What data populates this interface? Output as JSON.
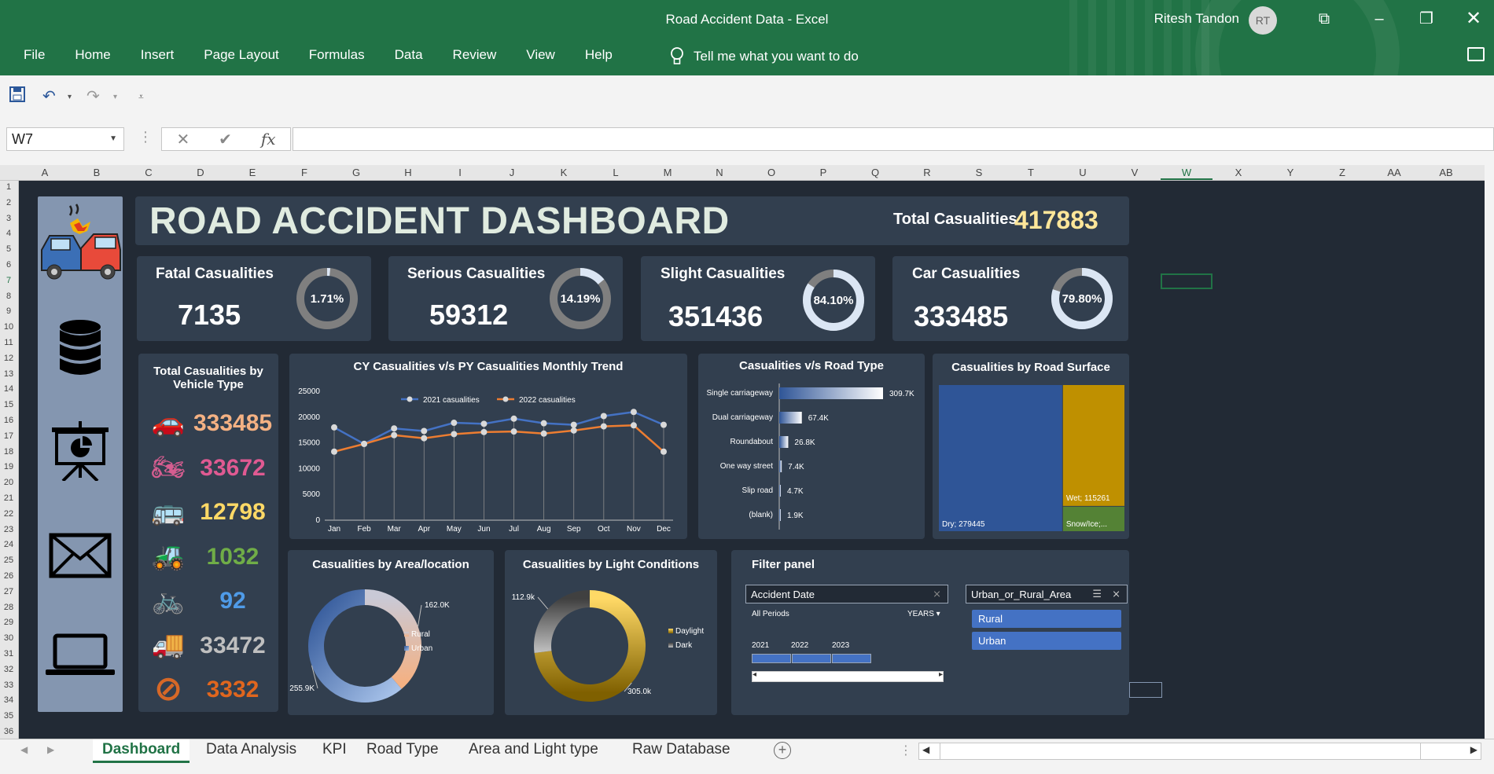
{
  "window": {
    "title": "Road Accident Data  -  Excel",
    "user": "Ritesh Tandon",
    "initials": "RT"
  },
  "ribbon": {
    "tabs": [
      "File",
      "Home",
      "Insert",
      "Page Layout",
      "Formulas",
      "Data",
      "Review",
      "View",
      "Help"
    ],
    "tell_me": "Tell me what you want to do"
  },
  "formula_bar": {
    "name_box": "W7",
    "fx": "fx",
    "value": ""
  },
  "columns": [
    "A",
    "B",
    "C",
    "D",
    "E",
    "F",
    "G",
    "H",
    "I",
    "J",
    "K",
    "L",
    "M",
    "N",
    "O",
    "P",
    "Q",
    "R",
    "S",
    "T",
    "U",
    "V",
    "W",
    "X",
    "Y",
    "Z",
    "AA",
    "AB"
  ],
  "rows": [
    "1",
    "2",
    "3",
    "4",
    "5",
    "6",
    "7",
    "8",
    "9",
    "10",
    "11",
    "12",
    "13",
    "14",
    "15",
    "16",
    "17",
    "18",
    "19",
    "20",
    "21",
    "22",
    "23",
    "24",
    "25",
    "26",
    "27",
    "28",
    "29",
    "30",
    "31",
    "32",
    "33",
    "34",
    "35",
    "36"
  ],
  "dashboard": {
    "title": "ROAD ACCIDENT DASHBOARD",
    "total_label": "Total Casualities",
    "total_value": "417883",
    "kpis": [
      {
        "label": "Fatal Casualities",
        "value": "7135",
        "pct": "1.71%",
        "fraction": 0.0171
      },
      {
        "label": "Serious Casualities",
        "value": "59312",
        "pct": "14.19%",
        "fraction": 0.1419
      },
      {
        "label": "Slight Casualities",
        "value": "351436",
        "pct": "84.10%",
        "fraction": 0.841
      },
      {
        "label": "Car Casualities",
        "value": "333485",
        "pct": "79.80%",
        "fraction": 0.798
      }
    ],
    "vehicle": {
      "title_line1": "Total Casualities by",
      "title_line2": "Vehicle Type",
      "items": [
        {
          "icon": "car-icon",
          "value": "333485",
          "color": "#f4b183"
        },
        {
          "icon": "motorcycle-icon",
          "value": "33672",
          "color": "#e05a92"
        },
        {
          "icon": "bus-icon",
          "value": "12798",
          "color": "#ffd966"
        },
        {
          "icon": "tractor-icon",
          "value": "1032",
          "color": "#70ad47"
        },
        {
          "icon": "bicycle-icon",
          "value": "92",
          "color": "#4f9be8"
        },
        {
          "icon": "truck-icon",
          "value": "33472",
          "color": "#bfbfbf"
        },
        {
          "icon": "no-entry-icon",
          "value": "3332",
          "color": "#e0661e"
        }
      ]
    },
    "filter": {
      "title": "Filter panel",
      "date_label": "Accident Date",
      "all_periods": "All Periods",
      "years_label": "YEARS",
      "years": [
        "2021",
        "2022",
        "2023"
      ],
      "area_label": "Urban_or_Rural_Area",
      "area_items": [
        "Rural",
        "Urban"
      ]
    }
  },
  "chart_data": [
    {
      "type": "line",
      "title": "CY Casualities v/s PY Casualities Monthly Trend",
      "categories": [
        "Jan",
        "Feb",
        "Mar",
        "Apr",
        "May",
        "Jun",
        "Jul",
        "Aug",
        "Sep",
        "Oct",
        "Nov",
        "Dec"
      ],
      "series": [
        {
          "name": "2021 casualities",
          "color": "#4472c4",
          "values": [
            18000,
            14800,
            17800,
            17300,
            18900,
            18700,
            19700,
            18800,
            18500,
            20200,
            21000,
            18500
          ]
        },
        {
          "name": "2022 casualities",
          "color": "#ed7d31",
          "values": [
            13300,
            14800,
            16500,
            15900,
            16700,
            17100,
            17200,
            16800,
            17400,
            18200,
            18400,
            13300
          ]
        }
      ],
      "ylim": [
        0,
        25000
      ],
      "yticks": [
        "25000",
        "20000",
        "15000",
        "10000",
        "5000",
        "0"
      ],
      "legend": "top"
    },
    {
      "type": "bar",
      "title": "Casualities v/s Road Type",
      "categories": [
        "Single carriageway",
        "Dual carriageway",
        "Roundabout",
        "One way street",
        "Slip road",
        "(blank)"
      ],
      "values": [
        309.7,
        67.4,
        26.8,
        7.4,
        4.7,
        1.9
      ],
      "labels": [
        "309.7K",
        "67.4K",
        "26.8K",
        "7.4K",
        "4.7K",
        "1.9K"
      ],
      "orientation": "horizontal"
    },
    {
      "type": "treemap",
      "title": "Casualities by Road Surface",
      "categories": [
        "Dry",
        "Wet",
        "Snow/Ice/Frost/Flood"
      ],
      "values": [
        279445,
        115261,
        23177
      ],
      "labels": [
        "Dry; 279445",
        "Wet; 115261",
        "Snow/Ice;..."
      ],
      "colors": [
        "#2f5597",
        "#bf9000",
        "#548235"
      ]
    },
    {
      "type": "pie",
      "title": "Casualities by Area/location",
      "categories": [
        "Rural",
        "Urban"
      ],
      "values": [
        162.0,
        255.9
      ],
      "labels": [
        "162.0K",
        "255.9K"
      ],
      "legend": "right"
    },
    {
      "type": "pie",
      "title": "Casualities by Light Conditions",
      "categories": [
        "Daylight",
        "Dark"
      ],
      "values": [
        305.0,
        112.9
      ],
      "labels": [
        "305.0k",
        "112.9k"
      ],
      "legend": "right"
    }
  ],
  "sheet_tabs": [
    "Dashboard",
    "Data Analysis",
    "KPI",
    "Road Type",
    "Area and Light type",
    "Raw Database"
  ]
}
